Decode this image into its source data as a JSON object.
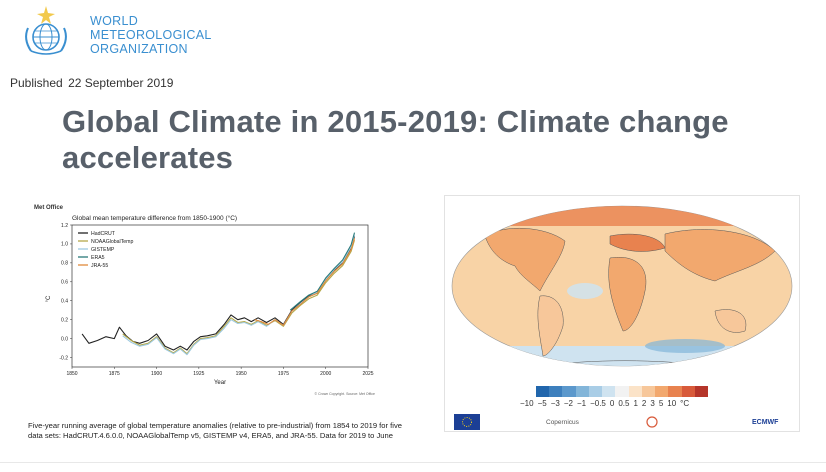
{
  "header": {
    "org_lines": [
      "WORLD",
      "METEOROLOGICAL",
      "ORGANIZATION"
    ],
    "published_label": "Published",
    "published_date": "22 September 2019"
  },
  "article": {
    "title": "Global Climate in 2015-2019: Climate change accelerates",
    "caption": "Five-year running average of global temperature anomalies (relative to pre-industrial) from 1854 to 2019 for five data sets: HadCRUT.4.6.0.0, NOAAGlobalTemp v5, GISTEMP v4, ERA5, and JRA-55. Data for 2019 to June"
  },
  "chart_data": {
    "type": "line",
    "source_label": "Met Office",
    "title": "Global mean temperature difference from 1850-1900 (°C)",
    "xlabel": "Year",
    "ylabel": "°C",
    "xlim": [
      1850,
      2025
    ],
    "ylim": [
      -0.3,
      1.2
    ],
    "x_ticks": [
      1850,
      1875,
      1900,
      1925,
      1950,
      1975,
      2000,
      2025
    ],
    "y_ticks": [
      -0.2,
      0.0,
      0.2,
      0.4,
      0.6,
      0.8,
      1.0,
      1.2
    ],
    "legend_position": "top-left",
    "footer_note": "© Crown Copyright. Source: Met Office",
    "series": [
      {
        "name": "HadCRUT",
        "color": "#222222",
        "x": [
          1856,
          1860,
          1865,
          1870,
          1875,
          1878,
          1882,
          1886,
          1890,
          1895,
          1900,
          1905,
          1910,
          1914,
          1918,
          1922,
          1926,
          1930,
          1935,
          1940,
          1944,
          1948,
          1952,
          1956,
          1960,
          1965,
          1970,
          1975,
          1980,
          1985,
          1990,
          1995,
          2000,
          2005,
          2010,
          2015,
          2017
        ],
        "y": [
          0.05,
          -0.05,
          -0.02,
          0.02,
          0.0,
          0.12,
          0.03,
          -0.03,
          -0.05,
          -0.02,
          0.05,
          -0.08,
          -0.12,
          -0.08,
          -0.12,
          -0.03,
          0.02,
          0.03,
          0.05,
          0.15,
          0.25,
          0.2,
          0.22,
          0.18,
          0.22,
          0.17,
          0.22,
          0.15,
          0.3,
          0.38,
          0.45,
          0.48,
          0.62,
          0.72,
          0.8,
          0.95,
          1.08
        ]
      },
      {
        "name": "NOAAGlobalTemp",
        "color": "#b5a84a",
        "x": [
          1880,
          1885,
          1890,
          1895,
          1900,
          1905,
          1910,
          1914,
          1918,
          1922,
          1926,
          1930,
          1935,
          1940,
          1944,
          1948,
          1952,
          1956,
          1960,
          1965,
          1970,
          1975,
          1980,
          1985,
          1990,
          1995,
          2000,
          2005,
          2010,
          2015,
          2017
        ],
        "y": [
          0.05,
          -0.02,
          -0.07,
          -0.05,
          0.02,
          -0.1,
          -0.15,
          -0.1,
          -0.16,
          -0.06,
          0.0,
          0.01,
          0.03,
          0.13,
          0.22,
          0.17,
          0.18,
          0.15,
          0.19,
          0.14,
          0.19,
          0.13,
          0.27,
          0.35,
          0.42,
          0.46,
          0.59,
          0.69,
          0.77,
          0.92,
          1.04
        ]
      },
      {
        "name": "GISTEMP",
        "color": "#9ecae1",
        "x": [
          1880,
          1885,
          1890,
          1895,
          1900,
          1905,
          1910,
          1914,
          1918,
          1922,
          1926,
          1930,
          1935,
          1940,
          1944,
          1948,
          1952,
          1956,
          1960,
          1965,
          1970,
          1975,
          1980,
          1985,
          1990,
          1995,
          2000,
          2005,
          2010,
          2015,
          2017
        ],
        "y": [
          0.03,
          -0.04,
          -0.08,
          -0.06,
          0.01,
          -0.11,
          -0.16,
          -0.11,
          -0.17,
          -0.07,
          -0.01,
          0.0,
          0.02,
          0.11,
          0.2,
          0.16,
          0.17,
          0.14,
          0.18,
          0.13,
          0.2,
          0.14,
          0.29,
          0.37,
          0.44,
          0.49,
          0.62,
          0.73,
          0.81,
          0.97,
          1.1
        ]
      },
      {
        "name": "ERA5",
        "color": "#2a7a7a",
        "x": [
          1979,
          1985,
          1990,
          1995,
          2000,
          2005,
          2010,
          2015,
          2017
        ],
        "y": [
          0.3,
          0.39,
          0.46,
          0.5,
          0.64,
          0.74,
          0.83,
          0.99,
          1.12
        ]
      },
      {
        "name": "JRA-55",
        "color": "#e08a3c",
        "x": [
          1958,
          1962,
          1966,
          1970,
          1975,
          1980,
          1985,
          1990,
          1995,
          2000,
          2005,
          2010,
          2015,
          2017
        ],
        "y": [
          0.2,
          0.18,
          0.15,
          0.2,
          0.14,
          0.29,
          0.36,
          0.44,
          0.48,
          0.61,
          0.71,
          0.79,
          0.94,
          1.06
        ]
      }
    ]
  },
  "map": {
    "colorbar_labels": [
      "−10",
      "−5",
      "−3",
      "−2",
      "−1",
      "−0.5",
      "0",
      "0.5",
      "1",
      "2",
      "3",
      "5",
      "10",
      "°C"
    ],
    "colorbar_colors": [
      "#2166ac",
      "#3d7fbd",
      "#5b98cc",
      "#82b5d9",
      "#a9cde6",
      "#cfe3f0",
      "#f2f2f2",
      "#fbe3c8",
      "#f7c79a",
      "#f2a86e",
      "#e8824f",
      "#d85a3a",
      "#b5352a"
    ],
    "logos": [
      "EU",
      "Copernicus",
      "Climate Change Service",
      "ECMWF"
    ]
  }
}
